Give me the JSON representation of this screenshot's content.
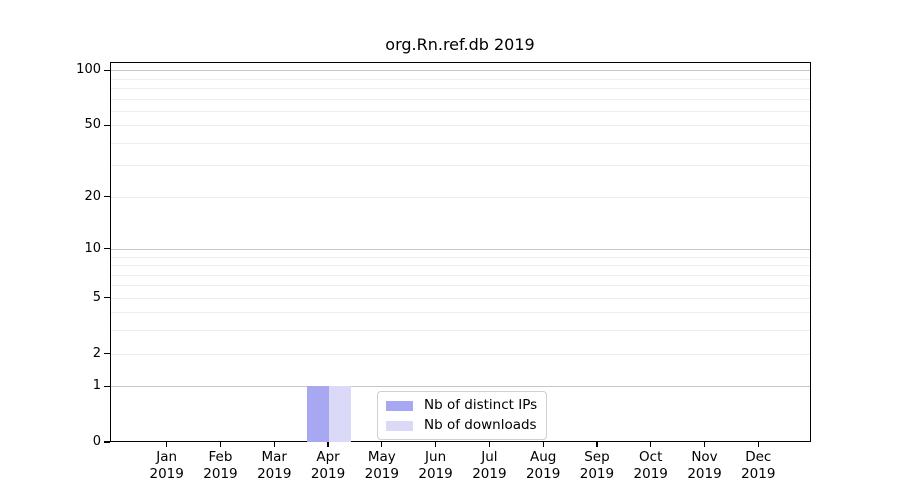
{
  "figure": {
    "title": "org.Rn.ref.db 2019"
  },
  "legend": {
    "items": [
      {
        "label": "Nb of distinct IPs"
      },
      {
        "label": "Nb of downloads"
      }
    ]
  },
  "chart_data": {
    "type": "bar",
    "title": "org.Rn.ref.db 2019",
    "categories": [
      "Jan 2019",
      "Feb 2019",
      "Mar 2019",
      "Apr 2019",
      "May 2019",
      "Jun 2019",
      "Jul 2019",
      "Aug 2019",
      "Sep 2019",
      "Oct 2019",
      "Nov 2019",
      "Dec 2019"
    ],
    "x_tick_line1": [
      "Jan",
      "Feb",
      "Mar",
      "Apr",
      "May",
      "Jun",
      "Jul",
      "Aug",
      "Sep",
      "Oct",
      "Nov",
      "Dec"
    ],
    "x_tick_line2": "2019",
    "series": [
      {
        "name": "Nb of distinct IPs",
        "color": "#a8a8f2",
        "values": [
          0,
          0,
          0,
          1,
          0,
          0,
          0,
          0,
          0,
          0,
          0,
          0
        ]
      },
      {
        "name": "Nb of downloads",
        "color": "#dadaf8",
        "values": [
          0,
          0,
          0,
          1,
          0,
          0,
          0,
          0,
          0,
          0,
          0,
          0
        ]
      }
    ],
    "y_ticks": [
      0,
      1,
      2,
      5,
      10,
      20,
      50,
      100
    ],
    "y_scale": "log1p",
    "ylim": [
      0,
      111
    ],
    "grid": true,
    "grid_minor_values": [
      2,
      3,
      4,
      5,
      6,
      7,
      8,
      9,
      20,
      30,
      40,
      50,
      60,
      70,
      80,
      90
    ],
    "grid_major_values": [
      1,
      10,
      100
    ],
    "legend_position": "bottom-center",
    "colors": {
      "grid_minor": "#ededed",
      "grid_major": "#c6c6c6",
      "axis": "#000000",
      "background": "#ffffff"
    }
  }
}
